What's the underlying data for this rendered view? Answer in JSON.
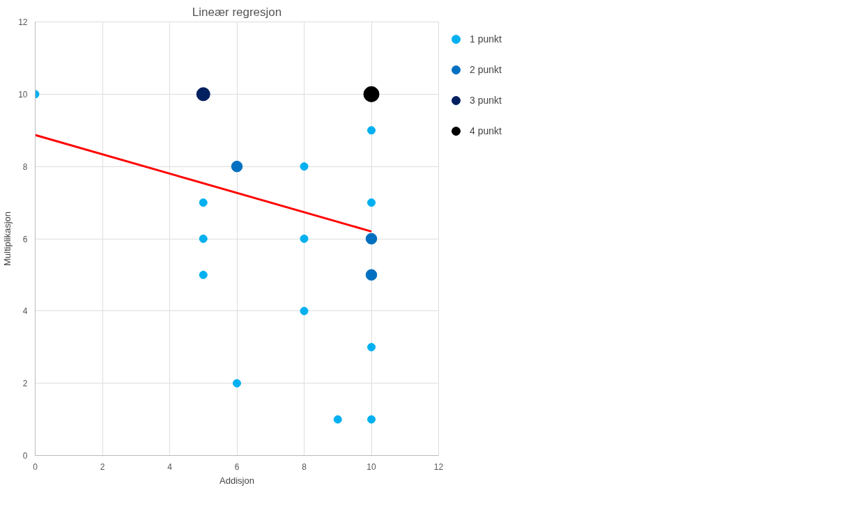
{
  "chart_data": {
    "type": "bubble",
    "title": "Lineær regresjon",
    "xlabel": "Addisjon",
    "ylabel": "Multiplikasjon",
    "xlim": [
      0,
      12
    ],
    "ylim": [
      0,
      12
    ],
    "xticks": [
      0,
      2,
      4,
      6,
      8,
      10,
      12
    ],
    "yticks": [
      0,
      2,
      4,
      6,
      8,
      10,
      12
    ],
    "grid": true,
    "legend": "right",
    "series": [
      {
        "name": "1 punkt",
        "color": "#00b0f0",
        "x": [
          0,
          5,
          5,
          5,
          6,
          8,
          8,
          8,
          9,
          10,
          10,
          10,
          10
        ],
        "values": [
          10,
          7,
          6,
          5,
          2,
          8,
          6,
          4,
          1,
          9,
          7,
          3,
          1
        ],
        "sizes": [
          0.25,
          0.25,
          0.25,
          0.25,
          0.25,
          0.25,
          0.25,
          0.25,
          0.25,
          0.25,
          0.25,
          0.25,
          0.25
        ]
      },
      {
        "name": "2 punkt",
        "color": "#0070c0",
        "x": [
          6,
          10,
          10
        ],
        "values": [
          8,
          6,
          5
        ],
        "sizes": [
          0.5,
          0.5,
          0.5
        ]
      },
      {
        "name": "3 punkt",
        "color": "#002060",
        "x": [
          5
        ],
        "values": [
          10
        ],
        "sizes": [
          0.75
        ]
      },
      {
        "name": "4 punkt",
        "color": "#000000",
        "x": [
          10
        ],
        "values": [
          10
        ],
        "sizes": [
          1
        ]
      },
      {
        "type": "line",
        "color": "#ff0000",
        "x": [
          0,
          10
        ],
        "values": [
          8.87,
          6.2
        ]
      }
    ]
  }
}
